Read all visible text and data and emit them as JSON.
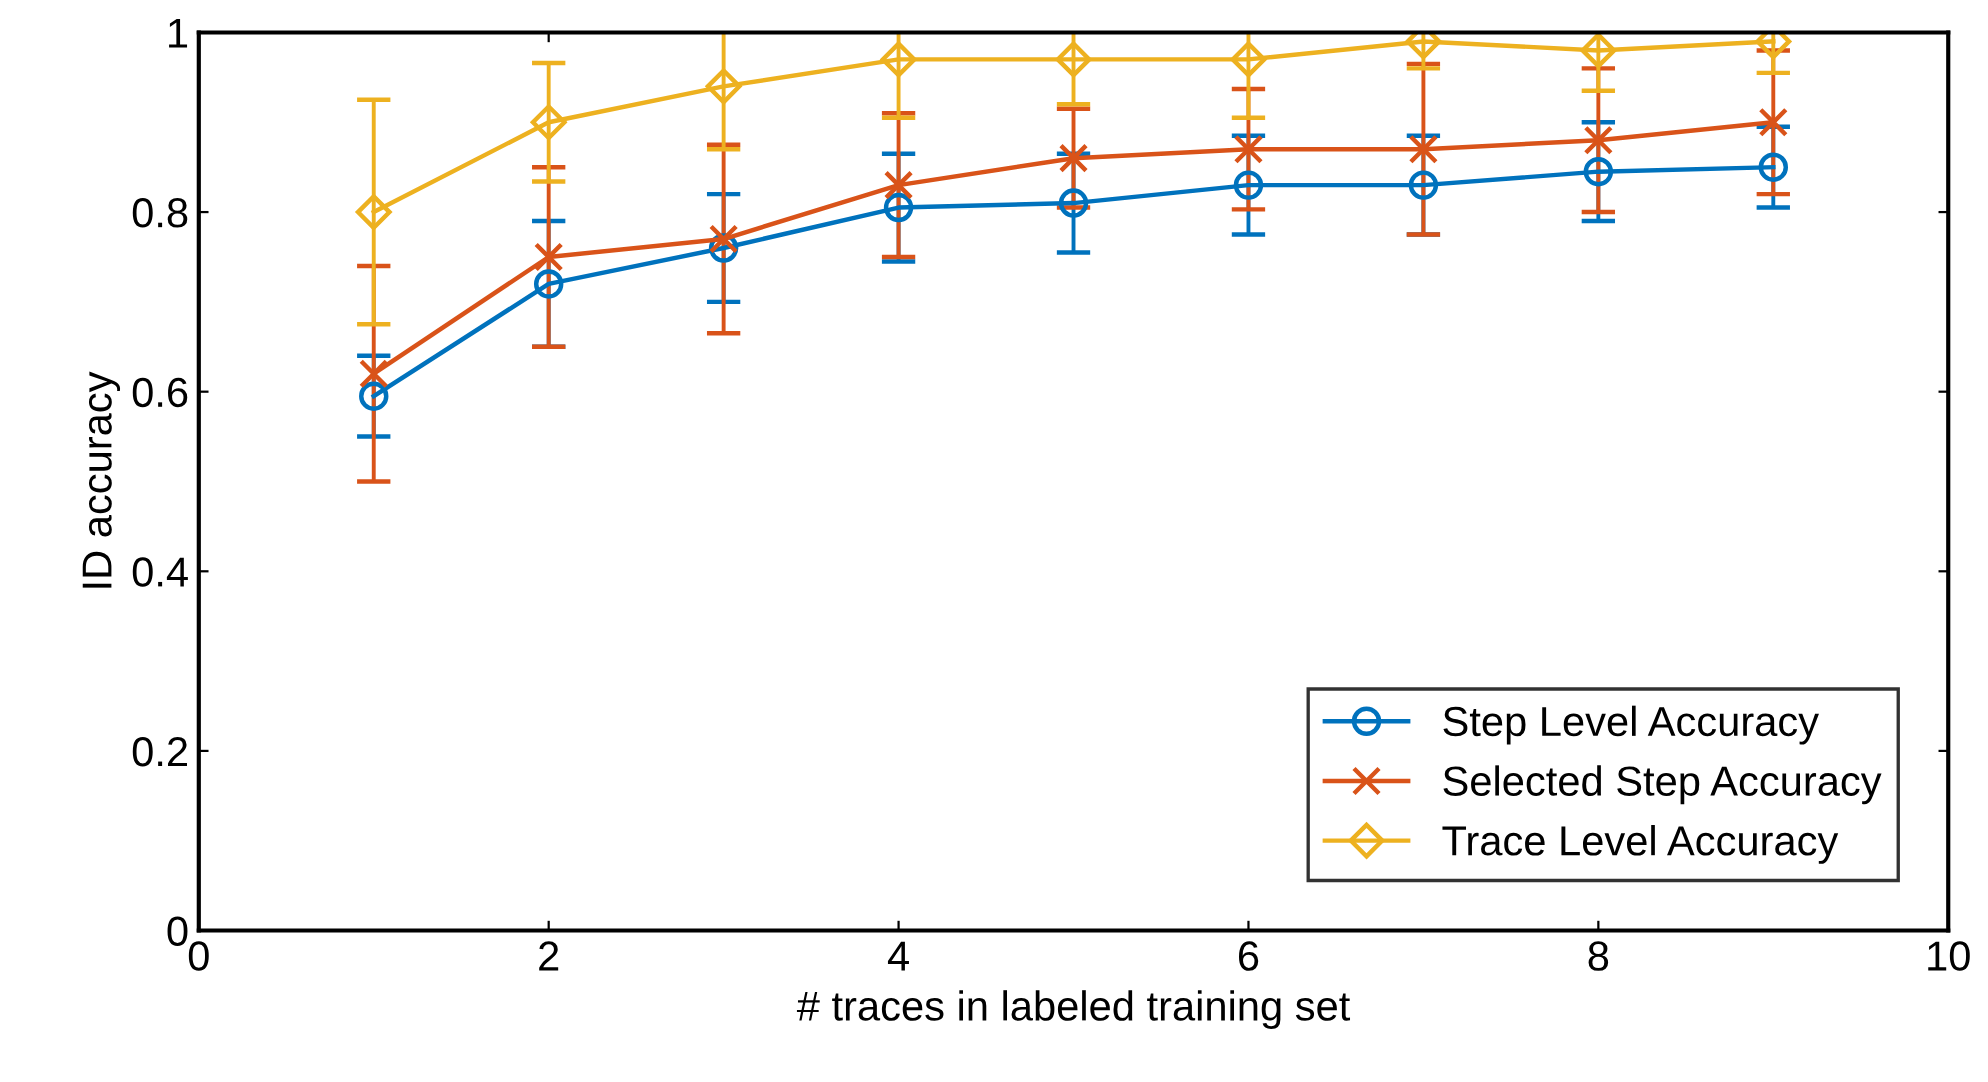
{
  "chart_data": {
    "type": "line",
    "xlabel": "# traces in labeled training set",
    "ylabel": "ID accuracy",
    "x": [
      1,
      2,
      3,
      4,
      5,
      6,
      7,
      8,
      9
    ],
    "xlim": [
      0,
      10
    ],
    "xticks": [
      0,
      2,
      4,
      6,
      8,
      10
    ],
    "ylim": [
      0,
      1
    ],
    "yticks": [
      0,
      0.2,
      0.4,
      0.6,
      0.8,
      1
    ],
    "grid": false,
    "legend": "bottom right",
    "series": [
      {
        "name": "Step Level Accuracy",
        "color": "#0072bd",
        "marker": "circle",
        "values": [
          0.595,
          0.72,
          0.76,
          0.805,
          0.81,
          0.83,
          0.83,
          0.845,
          0.85
        ],
        "errors": [
          0.045,
          0.07,
          0.06,
          0.06,
          0.055,
          0.055,
          0.055,
          0.055,
          0.045
        ]
      },
      {
        "name": "Selected Step Accuracy",
        "color": "#d95319",
        "marker": "cross",
        "values": [
          0.62,
          0.75,
          0.77,
          0.83,
          0.86,
          0.87,
          0.87,
          0.88,
          0.9
        ],
        "errors": [
          0.12,
          0.1,
          0.105,
          0.08,
          0.055,
          0.067,
          0.095,
          0.08,
          0.08
        ]
      },
      {
        "name": "Trace Level Accuracy",
        "color": "#edb120",
        "marker": "diamond",
        "values": [
          0.8,
          0.9,
          0.94,
          0.97,
          0.97,
          0.97,
          0.99,
          0.98,
          0.99
        ],
        "errors": [
          0.125,
          0.066,
          0.07,
          0.065,
          0.05,
          0.065,
          0.03,
          0.045,
          0.035
        ]
      }
    ]
  }
}
